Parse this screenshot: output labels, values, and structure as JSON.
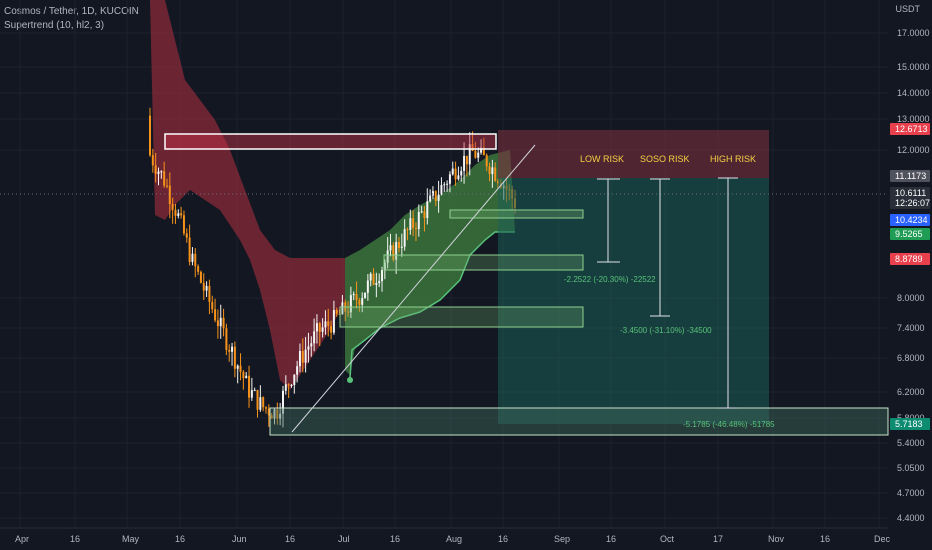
{
  "header": {
    "symbol": "Cosmos / Tether, 1D, KUCOIN",
    "indicator": "Supertrend (10, hl2, 3)"
  },
  "currency": "USDT",
  "y_axis": {
    "ticks": [
      "17.0000",
      "15.0000",
      "14.0000",
      "13.0000",
      "12.0000",
      "8.0000",
      "7.4000",
      "6.8000",
      "6.2000",
      "5.8000",
      "5.4000",
      "5.0500",
      "4.7000",
      "4.4000"
    ]
  },
  "x_axis": {
    "ticks": [
      "Apr",
      "16",
      "May",
      "16",
      "Jun",
      "16",
      "Jul",
      "16",
      "Aug",
      "16",
      "Sep",
      "16",
      "Oct",
      "17",
      "Nov",
      "16",
      "Dec"
    ]
  },
  "price_badges": [
    {
      "text": "12.6713",
      "color": "#e8414d"
    },
    {
      "text": "11.1173",
      "color": "#50535e"
    },
    {
      "text": "10.6111",
      "color": "#2a2e39",
      "text2": "12:26:07"
    },
    {
      "text": "10.4234",
      "color": "#2962ff"
    },
    {
      "text": "9.5265",
      "color": "#1f9d55"
    },
    {
      "text": "8.8789",
      "color": "#e8414d"
    },
    {
      "text": "5.7183",
      "color": "#0e8c72"
    }
  ],
  "annotations": {
    "risk_labels": [
      "LOW RISK",
      "SOSO RISK",
      "HIGH RISK"
    ],
    "measures": [
      "-2.2522 (-20.30%) -22522",
      "-3.4500 (-31.10%) -34500",
      "-5.1785 (-46.48%) -51785"
    ]
  },
  "colors": {
    "background": "#131722",
    "bull": "#26a69a",
    "bear": "#ef5350",
    "candle": "#f7931a",
    "supertrend_down": "#b23a48",
    "supertrend_up": "#3d8b3d",
    "grid": "#1e222d"
  },
  "chart_data": {
    "type": "candlestick",
    "instrument": "Cosmos / Tether",
    "interval": "1D",
    "exchange": "KUCOIN",
    "price_lines": {
      "stop": 12.6713,
      "entry": 11.1173,
      "last": 10.6111,
      "current": 10.4234,
      "supertrend": 9.5265,
      "level": 8.8789,
      "target": 5.7183
    },
    "risk_zones": [
      {
        "name": "LOW RISK",
        "move": "-2.2522",
        "pct": "-20.30%"
      },
      {
        "name": "SOSO RISK",
        "move": "-3.4500",
        "pct": "-31.10%"
      },
      {
        "name": "HIGH RISK",
        "move": "-5.1785",
        "pct": "-46.48%"
      }
    ],
    "trendline_closes": [
      12.1,
      11.3,
      10.2,
      9.0,
      8.2,
      7.5,
      6.9,
      6.3,
      6.0,
      5.9,
      6.5,
      7.0,
      7.4,
      7.6,
      7.9,
      8.2,
      8.6,
      9.1,
      9.6,
      10.1,
      10.6,
      11.2,
      11.8,
      12.2,
      11.9,
      11.3,
      10.6
    ]
  }
}
